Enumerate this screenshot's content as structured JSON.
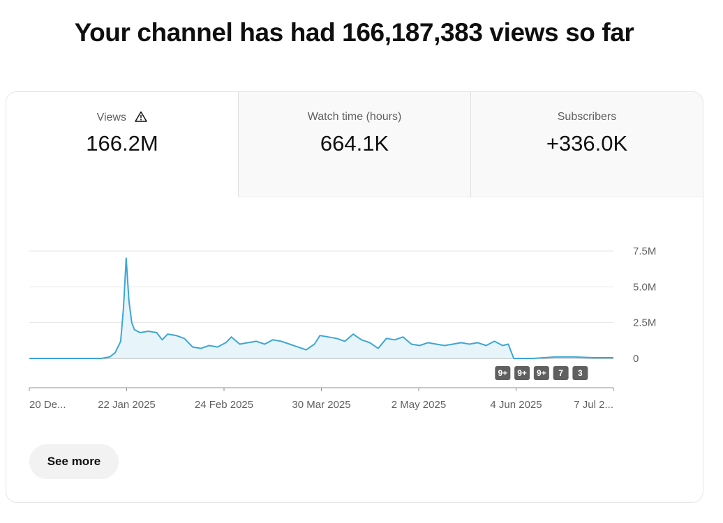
{
  "headline": "Your channel has had 166,187,383 views so far",
  "tabs": [
    {
      "label": "Views",
      "value": "166.2M",
      "selected": true,
      "warning_icon": "warning-triangle-icon"
    },
    {
      "label": "Watch time (hours)",
      "value": "664.1K",
      "selected": false
    },
    {
      "label": "Subscribers",
      "value": "+336.0K",
      "selected": false
    }
  ],
  "see_more_label": "See more",
  "colors": {
    "line": "#3ea6d3",
    "fill": "#e7f4fa",
    "badge": "#606060",
    "grid": "#e5e5e5"
  },
  "chart_data": {
    "type": "area",
    "title": "",
    "xlabel": "",
    "ylabel": "",
    "x_tick_labels": [
      "20 De...",
      "22 Jan 2025",
      "24 Feb 2025",
      "30 Mar 2025",
      "2 May 2025",
      "4 Jun 2025",
      "7 Jul 2..."
    ],
    "x_range": [
      "2024-12-20",
      "2025-07-19"
    ],
    "y_ticks": [
      0,
      2500000,
      5000000,
      7500000
    ],
    "y_tick_labels": [
      "0",
      "2.5M",
      "5.0M",
      "7.5M"
    ],
    "ylim": [
      0,
      7500000
    ],
    "y_axis_side": "right",
    "grid": true,
    "series": [
      {
        "points": [
          [
            "2024-12-20",
            0
          ],
          [
            "2024-12-30",
            0
          ],
          [
            "2025-01-10",
            0
          ],
          [
            "2025-01-15",
            0
          ],
          [
            "2025-01-18",
            100000
          ],
          [
            "2025-01-20",
            400000
          ],
          [
            "2025-01-22",
            1200000
          ],
          [
            "2025-01-23",
            3500000
          ],
          [
            "2025-01-24",
            7000000
          ],
          [
            "2025-01-25",
            4000000
          ],
          [
            "2025-01-26",
            2500000
          ],
          [
            "2025-01-27",
            2000000
          ],
          [
            "2025-01-29",
            1800000
          ],
          [
            "2025-02-01",
            1900000
          ],
          [
            "2025-02-04",
            1800000
          ],
          [
            "2025-02-06",
            1300000
          ],
          [
            "2025-02-08",
            1700000
          ],
          [
            "2025-02-11",
            1600000
          ],
          [
            "2025-02-14",
            1400000
          ],
          [
            "2025-02-17",
            800000
          ],
          [
            "2025-02-20",
            700000
          ],
          [
            "2025-02-23",
            900000
          ],
          [
            "2025-02-26",
            800000
          ],
          [
            "2025-03-01",
            1100000
          ],
          [
            "2025-03-03",
            1500000
          ],
          [
            "2025-03-06",
            1000000
          ],
          [
            "2025-03-09",
            1100000
          ],
          [
            "2025-03-12",
            1200000
          ],
          [
            "2025-03-15",
            1000000
          ],
          [
            "2025-03-18",
            1300000
          ],
          [
            "2025-03-21",
            1200000
          ],
          [
            "2025-03-24",
            1000000
          ],
          [
            "2025-03-27",
            800000
          ],
          [
            "2025-03-30",
            600000
          ],
          [
            "2025-04-02",
            1000000
          ],
          [
            "2025-04-04",
            1600000
          ],
          [
            "2025-04-07",
            1500000
          ],
          [
            "2025-04-10",
            1400000
          ],
          [
            "2025-04-13",
            1200000
          ],
          [
            "2025-04-16",
            1700000
          ],
          [
            "2025-04-19",
            1300000
          ],
          [
            "2025-04-22",
            1100000
          ],
          [
            "2025-04-25",
            700000
          ],
          [
            "2025-04-28",
            1400000
          ],
          [
            "2025-05-01",
            1300000
          ],
          [
            "2025-05-04",
            1500000
          ],
          [
            "2025-05-07",
            1000000
          ],
          [
            "2025-05-10",
            900000
          ],
          [
            "2025-05-13",
            1100000
          ],
          [
            "2025-05-16",
            1000000
          ],
          [
            "2025-05-19",
            900000
          ],
          [
            "2025-05-22",
            1000000
          ],
          [
            "2025-05-25",
            1100000
          ],
          [
            "2025-05-28",
            1000000
          ],
          [
            "2025-05-31",
            1100000
          ],
          [
            "2025-06-03",
            900000
          ],
          [
            "2025-06-06",
            1200000
          ],
          [
            "2025-06-09",
            900000
          ],
          [
            "2025-06-11",
            1000000
          ],
          [
            "2025-06-13",
            0
          ],
          [
            "2025-06-20",
            0
          ],
          [
            "2025-06-28",
            100000
          ],
          [
            "2025-07-05",
            100000
          ],
          [
            "2025-07-12",
            50000
          ],
          [
            "2025-07-19",
            50000
          ]
        ]
      }
    ],
    "badges": [
      {
        "label": "9+",
        "date": "2025-06-09"
      },
      {
        "label": "9+",
        "date": "2025-06-16"
      },
      {
        "label": "9+",
        "date": "2025-06-23"
      },
      {
        "label": "7",
        "date": "2025-06-30"
      },
      {
        "label": "3",
        "date": "2025-07-07"
      }
    ]
  }
}
